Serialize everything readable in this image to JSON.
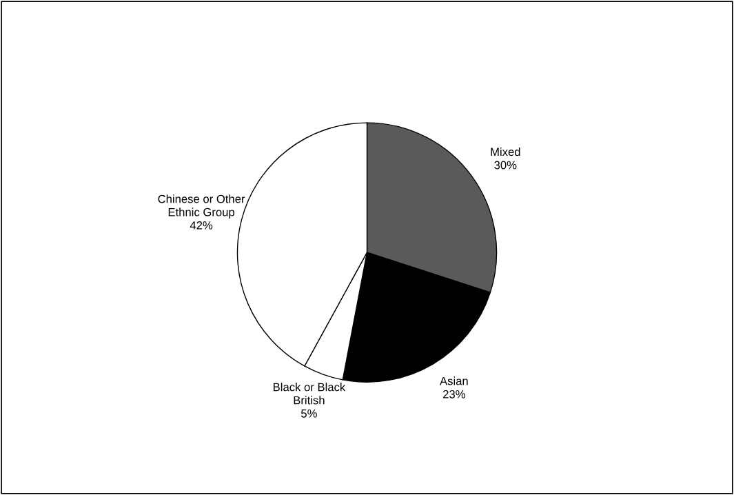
{
  "chart_data": {
    "type": "pie",
    "categories": [
      "Mixed",
      "Asian",
      "Black or Black\nBritish",
      "Chinese or Other\nEthnic Group"
    ],
    "values": [
      30,
      23,
      5,
      42
    ],
    "colors": [
      "#5a5a5a",
      "#000000",
      "#ffffff",
      "#ffffff"
    ],
    "value_labels": [
      "30%",
      "23%",
      "5%",
      "42%"
    ]
  }
}
